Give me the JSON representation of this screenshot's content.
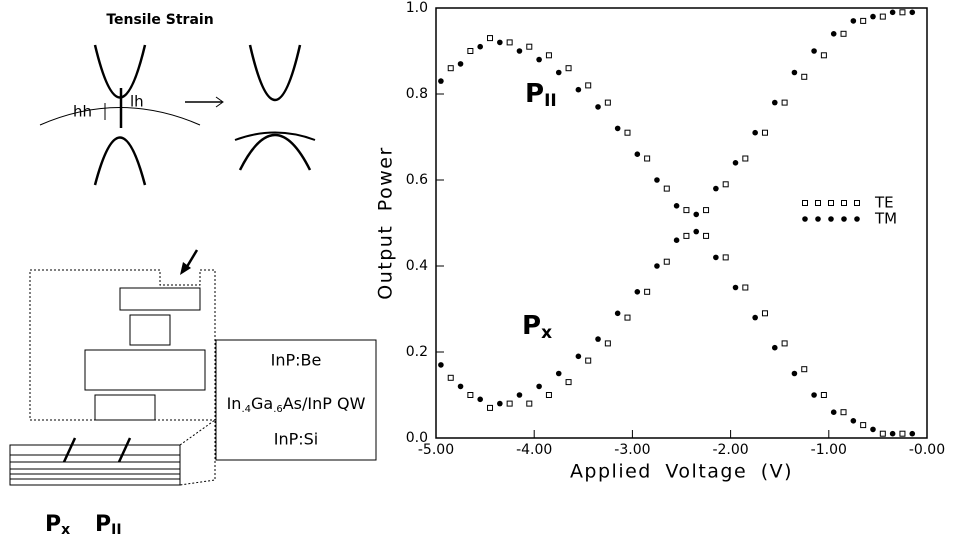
{
  "diagram": {
    "title": "Tensile Strain",
    "hh": "hh",
    "lh": "lh",
    "layers": [
      "InP:Be",
      [
        "In",
        ".4",
        "Ga",
        ".6",
        "As/InP QW"
      ],
      "InP:Si"
    ],
    "bottom_labels": [
      {
        "text": "P",
        "sub": "x"
      },
      {
        "text": "P",
        "sub": "II"
      }
    ]
  },
  "chart_data": {
    "type": "scatter",
    "xlabel": "Applied Voltage (V)",
    "ylabel": "Output Power",
    "xlim": [
      -5,
      0
    ],
    "ylim": [
      0,
      1
    ],
    "xticks": [
      {
        "value": -5,
        "label": "-5.00"
      },
      {
        "value": -4,
        "label": "-4.00"
      },
      {
        "value": -3,
        "label": "-3.00"
      },
      {
        "value": -2,
        "label": "-2.00"
      },
      {
        "value": -1,
        "label": "-1.00"
      },
      {
        "value": 0,
        "label": "-0.00"
      }
    ],
    "yticks": [
      {
        "value": 0,
        "label": "0.0"
      },
      0.2,
      0.4,
      0.6,
      0.8,
      {
        "value": 1,
        "label": "1.0"
      }
    ],
    "legend": "right",
    "annotations": [
      {
        "text": "P",
        "sub": "II"
      },
      {
        "text": "P",
        "sub": "x"
      }
    ],
    "series": [
      {
        "name": "TE",
        "marker": "square",
        "color": "#000000",
        "x": [
          -4.85,
          -4.65,
          -4.45,
          -4.25,
          -4.05,
          -3.85,
          -3.65,
          -3.45,
          -3.25,
          -3.05,
          -2.85,
          -2.65,
          -2.45,
          -2.25,
          -2.05,
          -1.85,
          -1.65,
          -1.45,
          -1.25,
          -1.05,
          -0.85,
          -0.65,
          -0.45,
          -0.25,
          -4.85,
          -4.65,
          -4.45,
          -4.25,
          -4.05,
          -3.85,
          -3.65,
          -3.45,
          -3.25,
          -3.05,
          -2.85,
          -2.65,
          -2.45,
          -2.25,
          -2.05,
          -1.85,
          -1.65,
          -1.45,
          -1.25,
          -1.05,
          -0.85,
          -0.65,
          -0.45,
          -0.25
        ],
        "values": [
          0.86,
          0.9,
          0.93,
          0.92,
          0.91,
          0.89,
          0.86,
          0.82,
          0.78,
          0.71,
          0.65,
          0.58,
          0.53,
          0.47,
          0.42,
          0.35,
          0.29,
          0.22,
          0.16,
          0.1,
          0.06,
          0.03,
          0.01,
          0.01,
          0.14,
          0.1,
          0.07,
          0.08,
          0.08,
          0.1,
          0.13,
          0.18,
          0.22,
          0.28,
          0.34,
          0.41,
          0.47,
          0.53,
          0.59,
          0.65,
          0.71,
          0.78,
          0.84,
          0.89,
          0.94,
          0.97,
          0.98,
          0.99
        ]
      },
      {
        "name": "TM",
        "marker": "circle",
        "color": "#000000",
        "x": [
          -4.95,
          -4.75,
          -4.55,
          -4.35,
          -4.15,
          -3.95,
          -3.75,
          -3.55,
          -3.35,
          -3.15,
          -2.95,
          -2.75,
          -2.55,
          -2.35,
          -2.15,
          -1.95,
          -1.75,
          -1.55,
          -1.35,
          -1.15,
          -0.95,
          -0.75,
          -0.55,
          -0.35,
          -0.15,
          -4.95,
          -4.75,
          -4.55,
          -4.35,
          -4.15,
          -3.95,
          -3.75,
          -3.55,
          -3.35,
          -3.15,
          -2.95,
          -2.75,
          -2.55,
          -2.35,
          -2.15,
          -1.95,
          -1.75,
          -1.55,
          -1.35,
          -1.15,
          -0.95,
          -0.75,
          -0.55,
          -0.35,
          -0.15
        ],
        "values": [
          0.83,
          0.87,
          0.91,
          0.92,
          0.9,
          0.88,
          0.85,
          0.81,
          0.77,
          0.72,
          0.66,
          0.6,
          0.54,
          0.48,
          0.42,
          0.35,
          0.28,
          0.21,
          0.15,
          0.1,
          0.06,
          0.04,
          0.02,
          0.01,
          0.01,
          0.17,
          0.12,
          0.09,
          0.08,
          0.1,
          0.12,
          0.15,
          0.19,
          0.23,
          0.29,
          0.34,
          0.4,
          0.46,
          0.52,
          0.58,
          0.64,
          0.71,
          0.78,
          0.85,
          0.9,
          0.94,
          0.97,
          0.98,
          0.99,
          0.99
        ]
      }
    ]
  }
}
